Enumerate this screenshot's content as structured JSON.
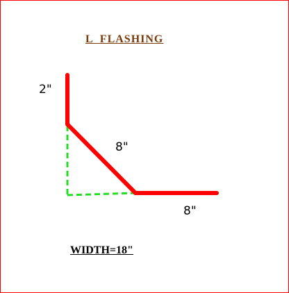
{
  "title": "L  FLASHING",
  "dimensions": {
    "top_leg": "2\"",
    "diagonal": "8\"",
    "bottom_leg": "8\""
  },
  "width_label": "WIDTH=18\"",
  "colors": {
    "frame": "#ff0000",
    "flashing": "#ff0000",
    "reference_lines": "#22dd22",
    "title": "#7a3b0c"
  }
}
